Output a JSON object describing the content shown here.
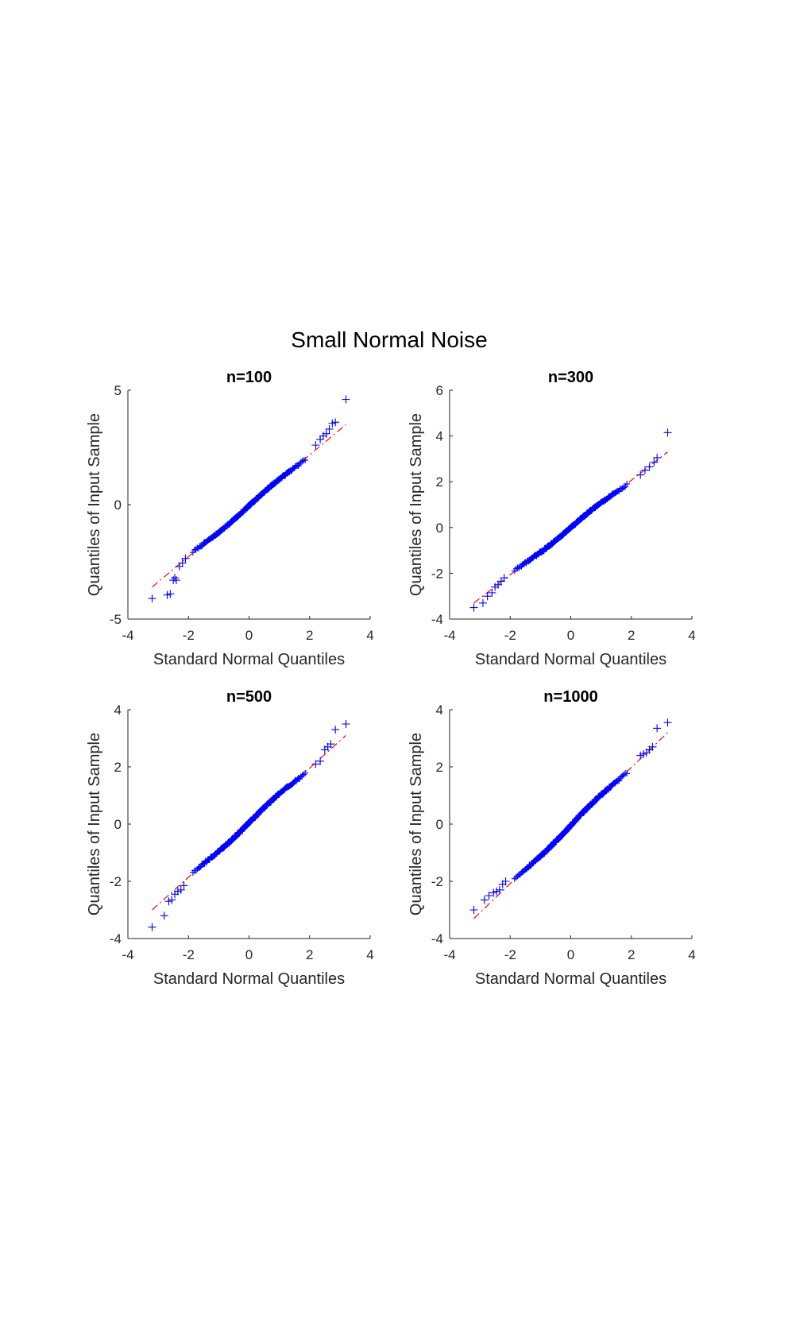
{
  "figure": {
    "title": "Small Normal Noise"
  },
  "chart_data": [
    {
      "type": "scatter",
      "title": "n=100",
      "xlabel": "Standard Normal Quantiles",
      "ylabel": "Quantiles of Input Sample",
      "xlim": [
        -4,
        4
      ],
      "ylim": [
        -5,
        5
      ],
      "xticks": [
        -4,
        -2,
        0,
        2,
        4
      ],
      "yticks": [
        -5,
        0,
        5
      ],
      "xtick_labels": [
        "-4",
        "-2",
        "0",
        "2",
        "4"
      ],
      "ytick_labels": [
        "-5",
        "0",
        "5"
      ],
      "grid": false,
      "marker": "+",
      "colors": {
        "points": "#0000ff",
        "reference": "#ff0000"
      },
      "n": 100,
      "reference_line": {
        "x": [
          -3.2,
          3.2
        ],
        "y": [
          -3.6,
          3.5
        ],
        "style": "dash-dot"
      },
      "points": [
        {
          "x": -3.2,
          "y": -4.1
        },
        {
          "x": -2.7,
          "y": -3.95
        },
        {
          "x": -2.6,
          "y": -3.9
        },
        {
          "x": -2.5,
          "y": -3.3
        },
        {
          "x": -2.45,
          "y": -3.2
        },
        {
          "x": -2.4,
          "y": -3.3
        },
        {
          "x": -2.3,
          "y": -2.7
        },
        {
          "x": -2.2,
          "y": -2.55
        },
        {
          "x": -2.1,
          "y": -2.35
        },
        {
          "x": 2.2,
          "y": 2.6
        },
        {
          "x": 2.35,
          "y": 2.85
        },
        {
          "x": 2.45,
          "y": 3.0
        },
        {
          "x": 2.55,
          "y": 3.1
        },
        {
          "x": 2.65,
          "y": 3.3
        },
        {
          "x": 2.75,
          "y": 3.55
        },
        {
          "x": 2.85,
          "y": 3.6
        },
        {
          "x": 3.2,
          "y": 4.6
        }
      ]
    },
    {
      "type": "scatter",
      "title": "n=300",
      "xlabel": "Standard Normal Quantiles",
      "ylabel": "Quantiles of Input Sample",
      "xlim": [
        -4,
        4
      ],
      "ylim": [
        -4,
        6
      ],
      "xticks": [
        -4,
        -2,
        0,
        2,
        4
      ],
      "yticks": [
        -4,
        -2,
        0,
        2,
        4,
        6
      ],
      "xtick_labels": [
        "-4",
        "-2",
        "0",
        "2",
        "4"
      ],
      "ytick_labels": [
        "-4",
        "-2",
        "0",
        "2",
        "4",
        "6"
      ],
      "grid": false,
      "marker": "+",
      "colors": {
        "points": "#0000ff",
        "reference": "#ff0000"
      },
      "n": 300,
      "reference_line": {
        "x": [
          -3.2,
          3.2
        ],
        "y": [
          -3.3,
          3.3
        ],
        "style": "dash-dot"
      },
      "points": [
        {
          "x": -3.2,
          "y": -3.5
        },
        {
          "x": -2.9,
          "y": -3.3
        },
        {
          "x": -2.75,
          "y": -3.0
        },
        {
          "x": -2.6,
          "y": -2.85
        },
        {
          "x": -2.5,
          "y": -2.6
        },
        {
          "x": -2.4,
          "y": -2.5
        },
        {
          "x": -2.3,
          "y": -2.35
        },
        {
          "x": -2.2,
          "y": -2.2
        },
        {
          "x": 2.3,
          "y": 2.3
        },
        {
          "x": 2.45,
          "y": 2.5
        },
        {
          "x": 2.6,
          "y": 2.65
        },
        {
          "x": 2.75,
          "y": 2.85
        },
        {
          "x": 2.85,
          "y": 3.05
        },
        {
          "x": 3.2,
          "y": 4.15
        }
      ]
    },
    {
      "type": "scatter",
      "title": "n=500",
      "xlabel": "Standard Normal Quantiles",
      "ylabel": "Quantiles of Input Sample",
      "xlim": [
        -4,
        4
      ],
      "ylim": [
        -4,
        4
      ],
      "xticks": [
        -4,
        -2,
        0,
        2,
        4
      ],
      "yticks": [
        -4,
        -2,
        0,
        2,
        4
      ],
      "xtick_labels": [
        "-4",
        "-2",
        "0",
        "2",
        "4"
      ],
      "ytick_labels": [
        "-4",
        "-2",
        "0",
        "2",
        "4"
      ],
      "grid": false,
      "marker": "+",
      "colors": {
        "points": "#0000ff",
        "reference": "#ff0000"
      },
      "n": 500,
      "reference_line": {
        "x": [
          -3.2,
          3.2
        ],
        "y": [
          -3.0,
          3.1
        ],
        "style": "dash-dot"
      },
      "points": [
        {
          "x": -3.2,
          "y": -3.6
        },
        {
          "x": -2.8,
          "y": -3.2
        },
        {
          "x": -2.65,
          "y": -2.7
        },
        {
          "x": -2.55,
          "y": -2.65
        },
        {
          "x": -2.45,
          "y": -2.45
        },
        {
          "x": -2.35,
          "y": -2.35
        },
        {
          "x": -2.25,
          "y": -2.3
        },
        {
          "x": -2.15,
          "y": -2.15
        },
        {
          "x": 2.2,
          "y": 2.1
        },
        {
          "x": 2.35,
          "y": 2.2
        },
        {
          "x": 2.5,
          "y": 2.6
        },
        {
          "x": 2.6,
          "y": 2.7
        },
        {
          "x": 2.7,
          "y": 2.8
        },
        {
          "x": 2.85,
          "y": 3.3
        },
        {
          "x": 3.2,
          "y": 3.5
        }
      ]
    },
    {
      "type": "scatter",
      "title": "n=1000",
      "xlabel": "Standard Normal Quantiles",
      "ylabel": "Quantiles of Input Sample",
      "xlim": [
        -4,
        4
      ],
      "ylim": [
        -4,
        4
      ],
      "xticks": [
        -4,
        -2,
        0,
        2,
        4
      ],
      "yticks": [
        -4,
        -2,
        0,
        2,
        4
      ],
      "xtick_labels": [
        "-4",
        "-2",
        "0",
        "2",
        "4"
      ],
      "ytick_labels": [
        "-4",
        "-2",
        "0",
        "2",
        "4"
      ],
      "grid": false,
      "marker": "+",
      "colors": {
        "points": "#0000ff",
        "reference": "#ff0000"
      },
      "n": 1000,
      "reference_line": {
        "x": [
          -3.2,
          3.2
        ],
        "y": [
          -3.3,
          3.2
        ],
        "style": "dash-dot"
      },
      "points": [
        {
          "x": -3.2,
          "y": -3.0
        },
        {
          "x": -2.85,
          "y": -2.65
        },
        {
          "x": -2.7,
          "y": -2.5
        },
        {
          "x": -2.55,
          "y": -2.4
        },
        {
          "x": -2.45,
          "y": -2.35
        },
        {
          "x": -2.35,
          "y": -2.3
        },
        {
          "x": -2.25,
          "y": -2.1
        },
        {
          "x": -2.15,
          "y": -2.0
        },
        {
          "x": 2.3,
          "y": 2.4
        },
        {
          "x": 2.4,
          "y": 2.45
        },
        {
          "x": 2.5,
          "y": 2.5
        },
        {
          "x": 2.6,
          "y": 2.6
        },
        {
          "x": 2.7,
          "y": 2.7
        },
        {
          "x": 2.85,
          "y": 3.35
        },
        {
          "x": 3.2,
          "y": 3.55
        }
      ]
    }
  ]
}
